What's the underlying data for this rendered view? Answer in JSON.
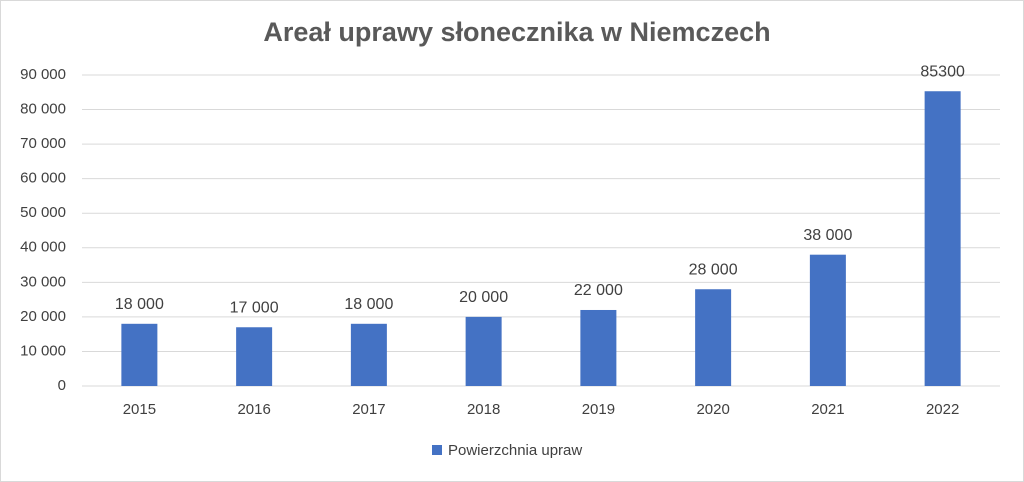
{
  "chart_data": {
    "type": "bar",
    "title": "Areał uprawy słonecznika w Niemczech",
    "categories": [
      "2015",
      "2016",
      "2017",
      "2018",
      "2019",
      "2020",
      "2021",
      "2022"
    ],
    "series": [
      {
        "name": "Powierzchnia upraw",
        "color": "#4472c4",
        "values": [
          18000,
          17000,
          18000,
          20000,
          22000,
          28000,
          38000,
          85300
        ],
        "value_labels": [
          "18 000",
          "17 000",
          "18 000",
          "20 000",
          "22 000",
          "28 000",
          "38 000",
          "85300"
        ]
      }
    ],
    "ylim": [
      0,
      90000
    ],
    "yticks": [
      0,
      {
        "value": 10000,
        "label": "10 000"
      },
      {
        "value": 20000,
        "label": "20 000"
      },
      {
        "value": 30000,
        "label": "30 000"
      },
      {
        "value": 40000,
        "label": "40 000"
      },
      {
        "value": 50000,
        "label": "50 000"
      },
      {
        "value": 60000,
        "label": "60 000"
      },
      {
        "value": 70000,
        "label": "70 000"
      },
      {
        "value": 80000,
        "label": "80 000"
      },
      {
        "value": 90000,
        "label": "90 000"
      }
    ],
    "grid": true,
    "legend": "bottom"
  }
}
